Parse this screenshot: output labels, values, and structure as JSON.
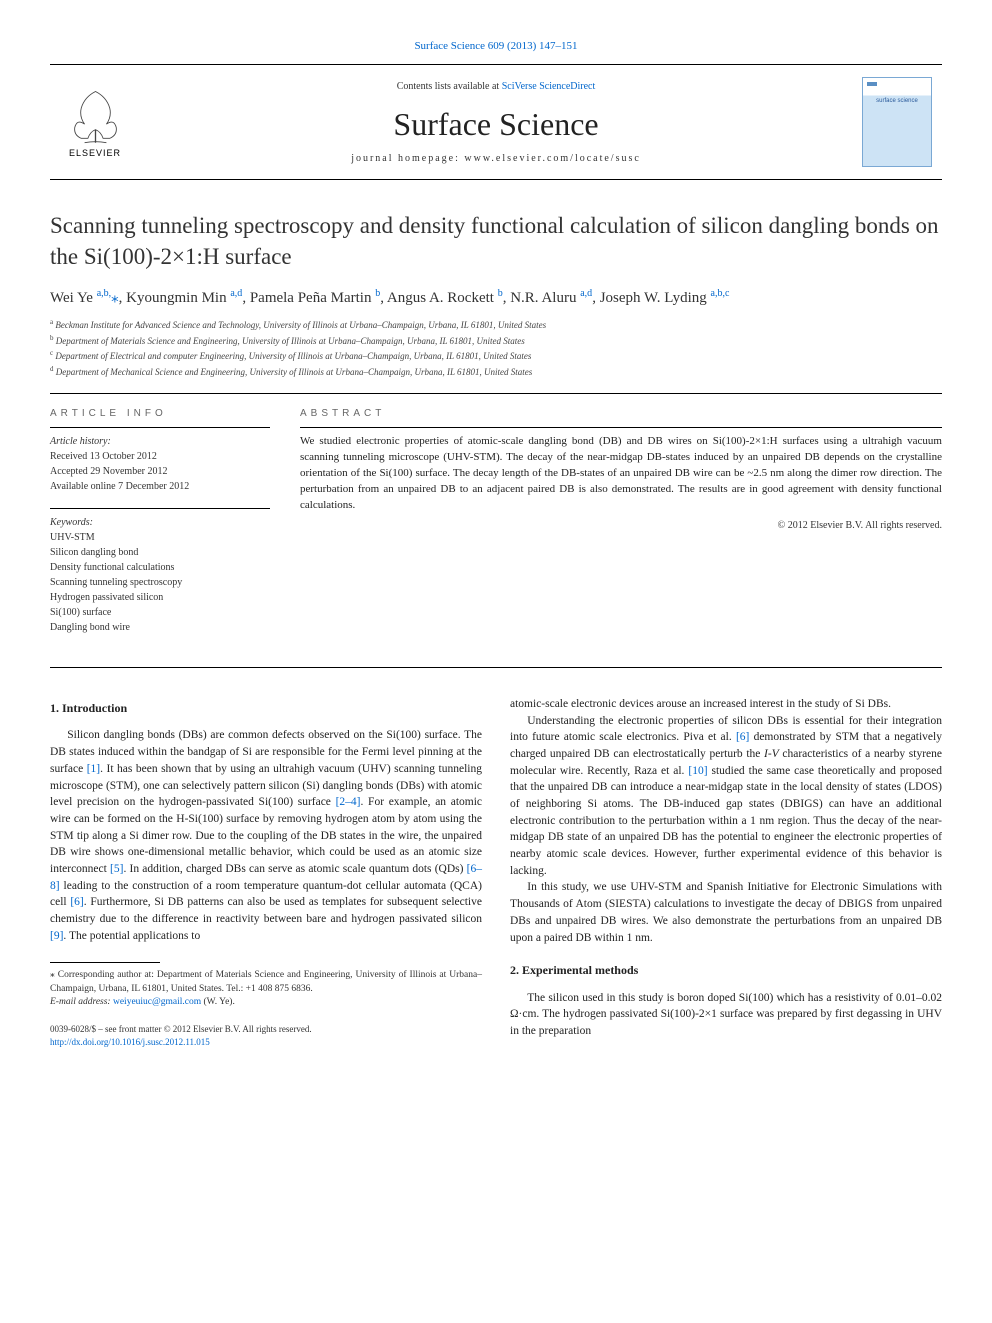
{
  "header": {
    "citation_link": "Surface Science 609 (2013) 147–151",
    "contents_text": "Contents lists available at ",
    "contents_link": "SciVerse ScienceDirect",
    "journal_name": "Surface Science",
    "homepage_text": "journal homepage: www.elsevier.com/locate/susc",
    "elsevier_label": "ELSEVIER",
    "cover_text": "surface science"
  },
  "article": {
    "title": "Scanning tunneling spectroscopy and density functional calculation of silicon dangling bonds on the Si(100)-2×1:H surface",
    "authors_html": "Wei Ye <sup>a,b,</sup><span class='star'>⁎</span>, Kyoungmin Min <sup>a,d</sup>, Pamela Peña Martin <sup>b</sup>, Angus A. Rockett <sup>b</sup>, N.R. Aluru <sup>a,d</sup>, Joseph W. Lyding <sup>a,b,c</sup>",
    "affiliations": [
      {
        "sup": "a",
        "text": "Beckman Institute for Advanced Science and Technology, University of Illinois at Urbana–Champaign, Urbana, IL 61801, United States"
      },
      {
        "sup": "b",
        "text": "Department of Materials Science and Engineering, University of Illinois at Urbana–Champaign, Urbana, IL 61801, United States"
      },
      {
        "sup": "c",
        "text": "Department of Electrical and computer Engineering, University of Illinois at Urbana–Champaign, Urbana, IL 61801, United States"
      },
      {
        "sup": "d",
        "text": "Department of Mechanical Science and Engineering, University of Illinois at Urbana–Champaign, Urbana, IL 61801, United States"
      }
    ]
  },
  "info": {
    "heading": "ARTICLE INFO",
    "history_label": "Article history:",
    "received": "Received 13 October 2012",
    "accepted": "Accepted 29 November 2012",
    "online": "Available online 7 December 2012",
    "keywords_label": "Keywords:",
    "keywords": [
      "UHV-STM",
      "Silicon dangling bond",
      "Density functional calculations",
      "Scanning tunneling spectroscopy",
      "Hydrogen passivated silicon",
      "Si(100) surface",
      "Dangling bond wire"
    ]
  },
  "abstract": {
    "heading": "ABSTRACT",
    "text": "We studied electronic properties of atomic-scale dangling bond (DB) and DB wires on Si(100)-2×1:H surfaces using a ultrahigh vacuum scanning tunneling microscope (UHV-STM). The decay of the near-midgap DB-states induced by an unpaired DB depends on the crystalline orientation of the Si(100) surface. The decay length of the DB-states of an unpaired DB wire can be ~2.5 nm along the dimer row direction. The perturbation from an unpaired DB to an adjacent paired DB is also demonstrated. The results are in good agreement with density functional calculations.",
    "copyright": "© 2012 Elsevier B.V. All rights reserved."
  },
  "sections": {
    "intro_heading": "1. Introduction",
    "intro_p1": "Silicon dangling bonds (DBs) are common defects observed on the Si(100) surface. The DB states induced within the bandgap of Si are responsible for the Fermi level pinning at the surface [1]. It has been shown that by using an ultrahigh vacuum (UHV) scanning tunneling microscope (STM), one can selectively pattern silicon (Si) dangling bonds (DBs) with atomic level precision on the hydrogen-passivated Si(100) surface [2–4]. For example, an atomic wire can be formed on the H-Si(100) surface by removing hydrogen atom by atom using the STM tip along a Si dimer row. Due to the coupling of the DB states in the wire, the unpaired DB wire shows one-dimensional metallic behavior, which could be used as an atomic size interconnect [5]. In addition, charged DBs can serve as atomic scale quantum dots (QDs) [6–8] leading to the construction of a room temperature quantum-dot cellular automata (QCA) cell [6]. Furthermore, Si DB patterns can also be used as templates for subsequent selective chemistry due to the difference in reactivity between bare and hydrogen passivated silicon [9]. The potential applications to",
    "col2_p1": "atomic-scale electronic devices arouse an increased interest in the study of Si DBs.",
    "col2_p2": "Understanding the electronic properties of silicon DBs is essential for their integration into future atomic scale electronics. Piva et al. [6] demonstrated by STM that a negatively charged unpaired DB can electrostatically perturb the I-V characteristics of a nearby styrene molecular wire. Recently, Raza et al. [10] studied the same case theoretically and proposed that the unpaired DB can introduce a near-midgap state in the local density of states (LDOS) of neighboring Si atoms. The DB-induced gap states (DBIGS) can have an additional electronic contribution to the perturbation within a 1 nm region. Thus the decay of the near-midgap DB state of an unpaired DB has the potential to engineer the electronic properties of nearby atomic scale devices. However, further experimental evidence of this behavior is lacking.",
    "col2_p3": "In this study, we use UHV-STM and Spanish Initiative for Electronic Simulations with Thousands of Atom (SIESTA) calculations to investigate the decay of DBIGS from unpaired DBs and unpaired DB wires. We also demonstrate the perturbations from an unpaired DB upon a paired DB within 1 nm.",
    "methods_heading": "2. Experimental methods",
    "methods_p1": "The silicon used in this study is boron doped Si(100) which has a resistivity of 0.01–0.02 Ω·cm. The hydrogen passivated Si(100)-2×1 surface was prepared by first degassing in UHV in the preparation"
  },
  "footnote": {
    "corr": "⁎ Corresponding author at: Department of Materials Science and Engineering, University of Illinois at Urbana–Champaign, Urbana, IL 61801, United States. Tel.: +1 408 875 6836.",
    "email_label": "E-mail address:",
    "email": "weiyeuiuc@gmail.com",
    "email_who": "(W. Ye)."
  },
  "bottom": {
    "line1": "0039-6028/$ – see front matter © 2012 Elsevier B.V. All rights reserved.",
    "doi": "http://dx.doi.org/10.1016/j.susc.2012.11.015"
  },
  "colors": {
    "link": "#0066cc",
    "text": "#222222",
    "border": "#000000"
  }
}
